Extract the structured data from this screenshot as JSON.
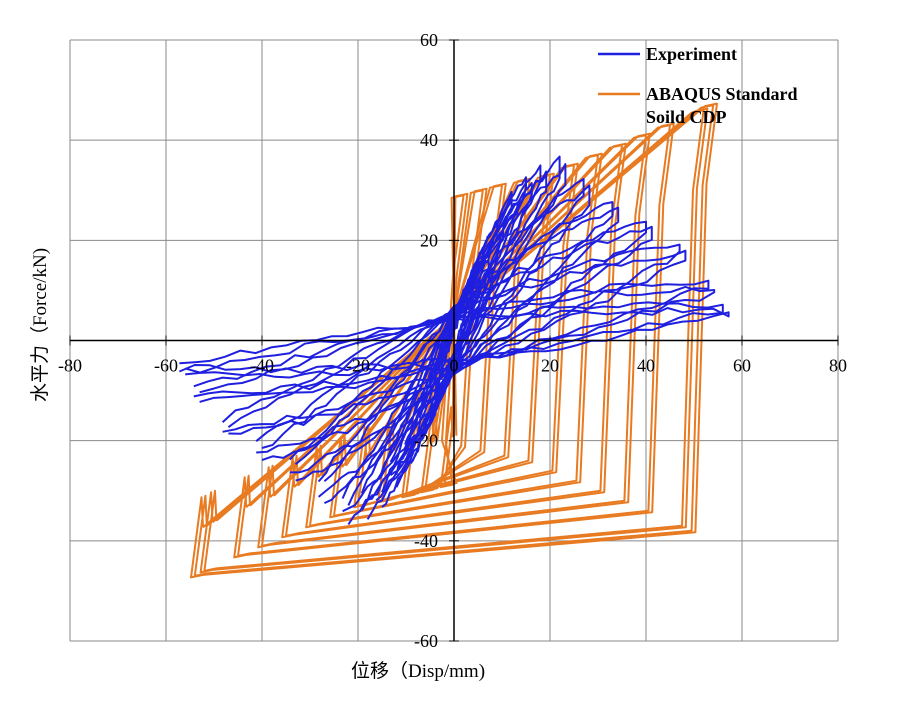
{
  "chart_data": {
    "type": "line",
    "title": "",
    "xlabel": "位移（Disp/mm)",
    "ylabel": "水平力（Force/kN)",
    "xlim": [
      -80,
      80
    ],
    "ylim": [
      -60,
      60
    ],
    "x_ticks": [
      -80,
      -60,
      -40,
      -20,
      0,
      20,
      40,
      60,
      80
    ],
    "y_ticks": [
      -60,
      -40,
      -20,
      0,
      20,
      40,
      60
    ],
    "grid": true,
    "legend_position": "top-right",
    "series": [
      {
        "name": "Experiment",
        "color": "#1f1fe0",
        "style": "hysteresis",
        "cycles": [
          {
            "d": 4,
            "f": 12,
            "r": 3
          },
          {
            "d": 6,
            "f": 18,
            "r": 4
          },
          {
            "d": 9,
            "f": 24,
            "r": 5
          },
          {
            "d": 12,
            "f": 29,
            "r": 6
          },
          {
            "d": 15,
            "f": 33,
            "r": 7
          },
          {
            "d": 18,
            "f": 35,
            "r": 8
          },
          {
            "d": 22,
            "f": 36,
            "r": 9
          },
          {
            "d": 27,
            "f": 32,
            "r": 10
          },
          {
            "d": 33,
            "f": 28,
            "r": 11
          },
          {
            "d": 40,
            "f": 24,
            "r": 11
          },
          {
            "d": 47,
            "f": 19,
            "r": 11
          },
          {
            "d": 53,
            "f": 12,
            "r": 10
          },
          {
            "d": 56,
            "f": 7,
            "r": 9
          }
        ]
      },
      {
        "name": "ABAQUS Standard Soild CDP",
        "color": "#e87b22",
        "style": "hysteresis",
        "cycles": [
          {
            "d": 2,
            "f": 29
          },
          {
            "d": 6,
            "f": 30
          },
          {
            "d": 10,
            "f": 31
          },
          {
            "d": 15,
            "f": 32
          },
          {
            "d": 20,
            "f": 33
          },
          {
            "d": 25,
            "f": 35
          },
          {
            "d": 30,
            "f": 37
          },
          {
            "d": 35,
            "f": 39
          },
          {
            "d": 40,
            "f": 41
          },
          {
            "d": 45,
            "f": 43
          },
          {
            "d": 52,
            "f": 46
          },
          {
            "d": 54,
            "f": 47
          }
        ]
      }
    ]
  }
}
